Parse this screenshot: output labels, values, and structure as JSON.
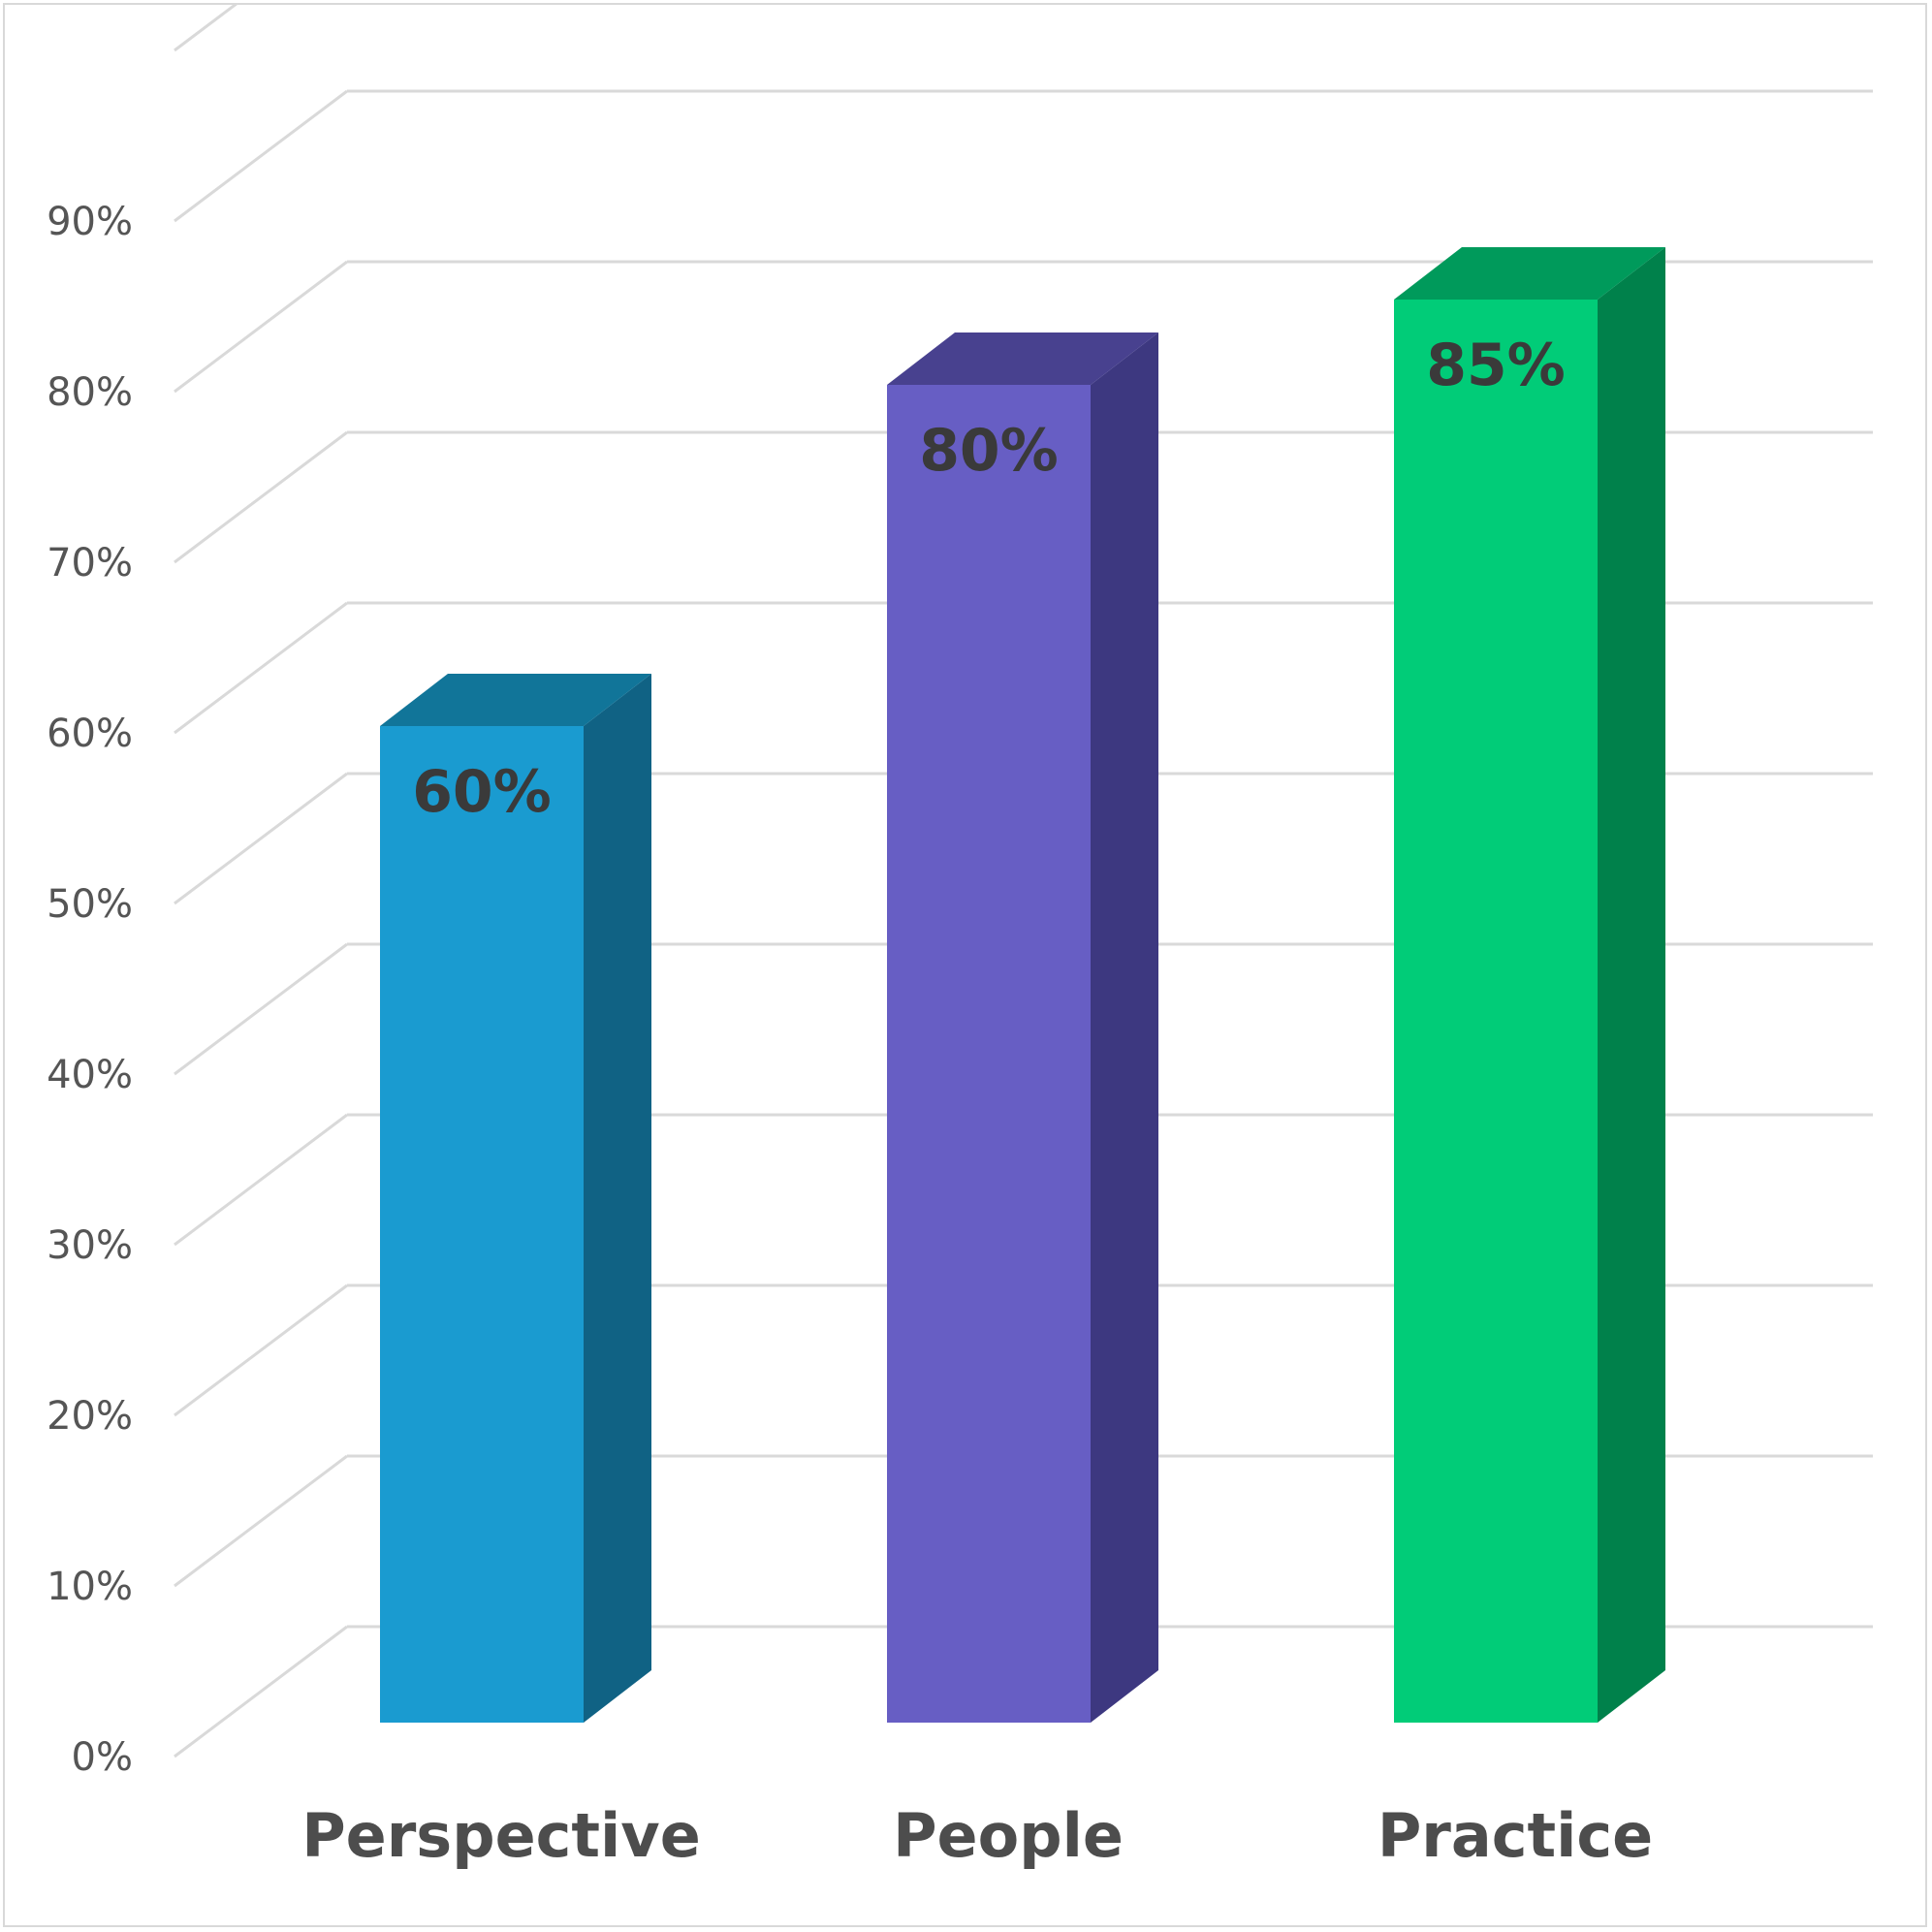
{
  "chart_data": {
    "type": "bar",
    "style": "3d-column",
    "categories": [
      "Perspective",
      "People",
      "Practice"
    ],
    "values": [
      60,
      80,
      85
    ],
    "data_labels": [
      "60%",
      "80%",
      "85%"
    ],
    "y_ticks": [
      "0%",
      "10%",
      "20%",
      "30%",
      "40%",
      "50%",
      "60%",
      "70%",
      "80%",
      "90%"
    ],
    "ylim": [
      0,
      100
    ],
    "grid": true,
    "legend": "none",
    "colors": {
      "front": [
        "#1a9bd0",
        "#675ec4",
        "#01cc78"
      ],
      "side": [
        "#106284",
        "#3d3880",
        "#00814b"
      ],
      "top": [
        "#117599",
        "#48418f",
        "#009a5b"
      ],
      "grid": "#d9d9d9",
      "frame": "#d9d9d9"
    }
  }
}
